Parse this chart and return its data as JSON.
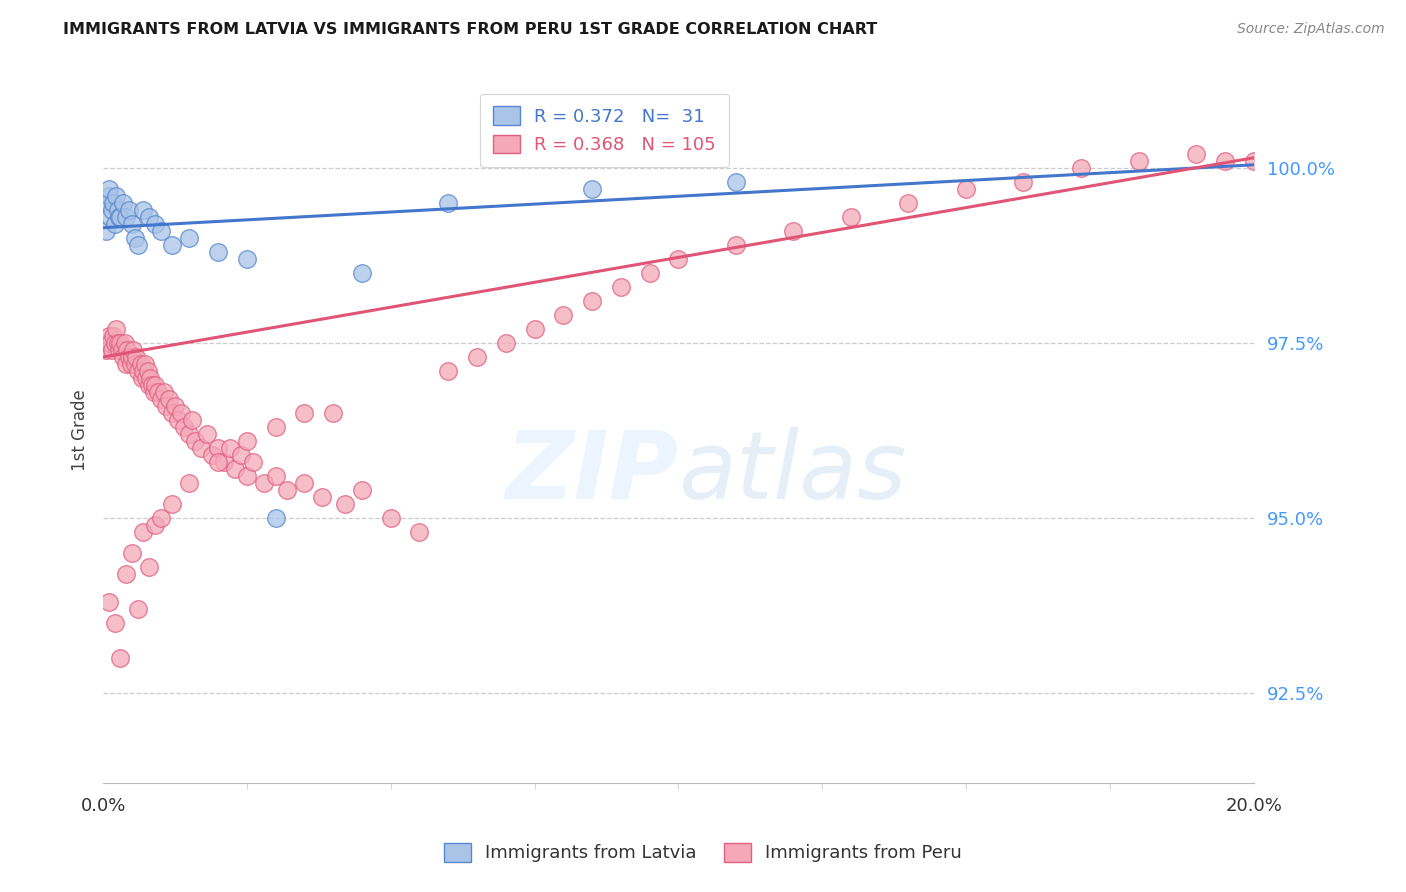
{
  "title": "IMMIGRANTS FROM LATVIA VS IMMIGRANTS FROM PERU 1ST GRADE CORRELATION CHART",
  "source": "Source: ZipAtlas.com",
  "ylabel": "1st Grade",
  "y_ticks": [
    92.5,
    95.0,
    97.5,
    100.0
  ],
  "y_tick_labels": [
    "92.5%",
    "95.0%",
    "97.5%",
    "100.0%"
  ],
  "xlim": [
    0.0,
    20.0
  ],
  "ylim": [
    91.2,
    101.3
  ],
  "latvia_R": 0.372,
  "latvia_N": 31,
  "peru_R": 0.368,
  "peru_N": 105,
  "latvia_color": "#aac4e8",
  "peru_color": "#f4a8b8",
  "latvia_edge_color": "#5588cc",
  "peru_edge_color": "#e06080",
  "latvia_line_color": "#4477cc",
  "peru_line_color": "#e05575",
  "legend_label_latvia": "Immigrants from Latvia",
  "legend_label_peru": "Immigrants from Peru",
  "latvia_x": [
    0.05,
    0.08,
    0.1,
    0.1,
    0.12,
    0.15,
    0.18,
    0.2,
    0.22,
    0.25,
    0.28,
    0.3,
    0.35,
    0.4,
    0.45,
    0.5,
    0.55,
    0.6,
    0.7,
    0.8,
    0.9,
    1.0,
    1.2,
    1.5,
    2.0,
    2.5,
    3.0,
    4.5,
    6.0,
    8.5,
    11.0
  ],
  "latvia_y": [
    99.1,
    99.5,
    99.6,
    99.7,
    99.3,
    99.4,
    99.5,
    99.2,
    99.6,
    99.4,
    99.3,
    99.3,
    99.5,
    99.3,
    99.4,
    99.2,
    99.0,
    98.9,
    99.4,
    99.3,
    99.2,
    99.1,
    98.9,
    99.0,
    98.8,
    98.7,
    95.0,
    98.5,
    99.5,
    99.7,
    99.8
  ],
  "peru_x": [
    0.05,
    0.08,
    0.1,
    0.12,
    0.15,
    0.18,
    0.2,
    0.22,
    0.25,
    0.28,
    0.3,
    0.32,
    0.35,
    0.38,
    0.4,
    0.42,
    0.45,
    0.48,
    0.5,
    0.52,
    0.55,
    0.58,
    0.6,
    0.65,
    0.68,
    0.7,
    0.72,
    0.75,
    0.78,
    0.8,
    0.82,
    0.85,
    0.88,
    0.9,
    0.95,
    1.0,
    1.05,
    1.1,
    1.15,
    1.2,
    1.25,
    1.3,
    1.35,
    1.4,
    1.5,
    1.55,
    1.6,
    1.7,
    1.8,
    1.9,
    2.0,
    2.1,
    2.2,
    2.3,
    2.4,
    2.5,
    2.6,
    2.8,
    3.0,
    3.2,
    3.5,
    3.8,
    4.0,
    4.2,
    4.5,
    5.0,
    5.5,
    6.0,
    6.5,
    7.0,
    7.5,
    8.0,
    8.5,
    9.0,
    9.5,
    10.0,
    11.0,
    12.0,
    13.0,
    14.0,
    15.0,
    16.0,
    17.0,
    18.0,
    19.0,
    19.5,
    20.0,
    0.1,
    0.2,
    0.3,
    0.4,
    0.5,
    0.6,
    0.7,
    0.8,
    0.9,
    1.0,
    1.2,
    1.5,
    2.0,
    2.5,
    3.0,
    3.5
  ],
  "peru_y": [
    97.4,
    97.5,
    97.6,
    97.5,
    97.4,
    97.6,
    97.5,
    97.7,
    97.5,
    97.4,
    97.5,
    97.4,
    97.3,
    97.5,
    97.2,
    97.4,
    97.3,
    97.2,
    97.3,
    97.4,
    97.2,
    97.3,
    97.1,
    97.2,
    97.0,
    97.1,
    97.2,
    97.0,
    97.1,
    96.9,
    97.0,
    96.9,
    96.8,
    96.9,
    96.8,
    96.7,
    96.8,
    96.6,
    96.7,
    96.5,
    96.6,
    96.4,
    96.5,
    96.3,
    96.2,
    96.4,
    96.1,
    96.0,
    96.2,
    95.9,
    96.0,
    95.8,
    96.0,
    95.7,
    95.9,
    95.6,
    95.8,
    95.5,
    95.6,
    95.4,
    95.5,
    95.3,
    96.5,
    95.2,
    95.4,
    95.0,
    94.8,
    97.1,
    97.3,
    97.5,
    97.7,
    97.9,
    98.1,
    98.3,
    98.5,
    98.7,
    98.9,
    99.1,
    99.3,
    99.5,
    99.7,
    99.8,
    100.0,
    100.1,
    100.2,
    100.1,
    100.1,
    93.8,
    93.5,
    93.0,
    94.2,
    94.5,
    93.7,
    94.8,
    94.3,
    94.9,
    95.0,
    95.2,
    95.5,
    95.8,
    96.1,
    96.3,
    96.5
  ]
}
